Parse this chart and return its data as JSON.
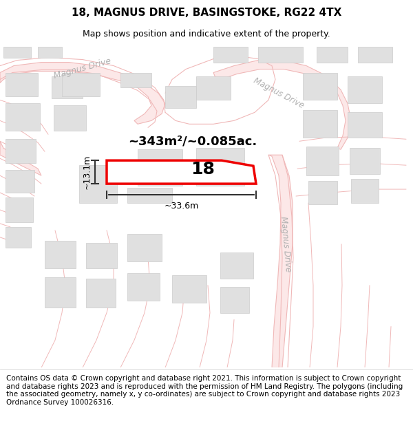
{
  "title": "18, MAGNUS DRIVE, BASINGSTOKE, RG22 4TX",
  "subtitle": "Map shows position and indicative extent of the property.",
  "footer": "Contains OS data © Crown copyright and database right 2021. This information is subject to Crown copyright and database rights 2023 and is reproduced with the permission of HM Land Registry. The polygons (including the associated geometry, namely x, y co-ordinates) are subject to Crown copyright and database rights 2023 Ordnance Survey 100026316.",
  "map_bg": "#ffffff",
  "road_line_color": "#f0b8b8",
  "road_fill_color": "#fce8e8",
  "block_fill": "#e0e0e0",
  "block_edge": "#cccccc",
  "highlight_color": "#ee0000",
  "dim_color": "#333333",
  "road_label_color": "#b0b0b0",
  "area_label": "~343m²/~0.085ac.",
  "number_label": "18",
  "width_label": "~33.6m",
  "height_label": "~13.1m",
  "title_fontsize": 11,
  "subtitle_fontsize": 9,
  "footer_fontsize": 7.5
}
